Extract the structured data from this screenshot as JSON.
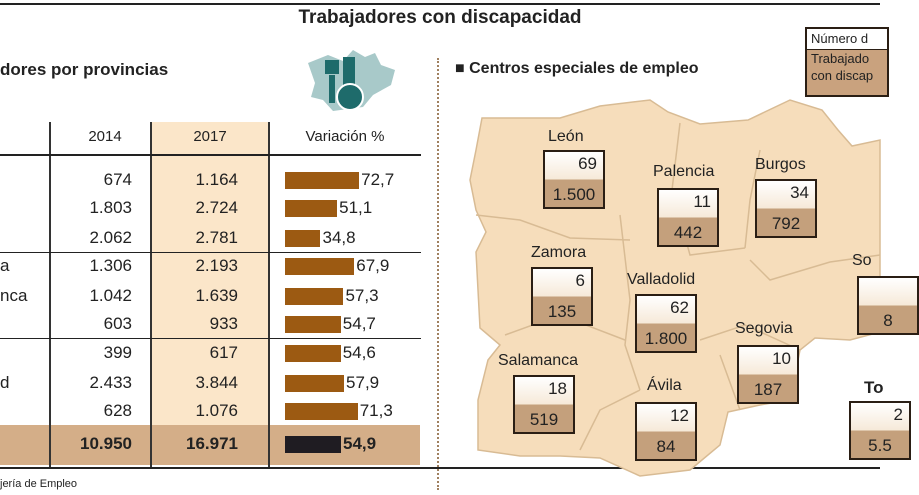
{
  "title": "Trabajadores con discapacidad",
  "left": {
    "subtitle": "dores por provincias",
    "headers": [
      "2014",
      "2017",
      "Variación %"
    ],
    "row_labels": [
      "a",
      "nca",
      "d"
    ],
    "rows": [
      {
        "y2014": "674",
        "y2017": "1.164",
        "var": "72,7",
        "var_value": 72.7
      },
      {
        "y2014": "1.803",
        "y2017": "2.724",
        "var": "51,1",
        "var_value": 51.1
      },
      {
        "y2014": "2.062",
        "y2017": "2.781",
        "var": "34,8",
        "var_value": 34.8
      },
      {
        "y2014": "1.306",
        "y2017": "2.193",
        "var": "67,9",
        "var_value": 67.9
      },
      {
        "y2014": "1.042",
        "y2017": "1.639",
        "var": "57,3",
        "var_value": 57.3
      },
      {
        "y2014": "603",
        "y2017": "933",
        "var": "54,7",
        "var_value": 54.7
      },
      {
        "y2014": "399",
        "y2017": "617",
        "var": "54,6",
        "var_value": 54.6
      },
      {
        "y2014": "2.433",
        "y2017": "3.844",
        "var": "57,9",
        "var_value": 57.9
      },
      {
        "y2014": "628",
        "y2017": "1.076",
        "var": "71,3",
        "var_value": 71.3
      }
    ],
    "total": {
      "y2014": "10.950",
      "y2017": "16.971",
      "var": "54,9",
      "var_value": 54.9
    },
    "source": "jería de Empleo",
    "colors": {
      "bar": "#9c5a12",
      "total_bar": "#1f1c22",
      "col2017": "#fbe6c9",
      "total_row": "#d4ae88"
    }
  },
  "right": {
    "subtitle": "Centros especiales de empleo",
    "legend": {
      "top": "Número d",
      "bottom1": "Trabajado",
      "bottom2": "con discap"
    },
    "provinces": [
      {
        "name": "León",
        "centros": "69",
        "trabajadores": "1.500"
      },
      {
        "name": "Palencia",
        "centros": "11",
        "trabajadores": "442"
      },
      {
        "name": "Burgos",
        "centros": "34",
        "trabajadores": "792"
      },
      {
        "name": "Zamora",
        "centros": "6",
        "trabajadores": "135"
      },
      {
        "name": "Valladolid",
        "centros": "62",
        "trabajadores": "1.800"
      },
      {
        "name": "Segovia",
        "centros": "10",
        "trabajadores": "187"
      },
      {
        "name": "Salamanca",
        "centros": "18",
        "trabajadores": "519"
      },
      {
        "name": "Ávila",
        "centros": "12",
        "trabajadores": "84"
      },
      {
        "name": "So",
        "centros": "",
        "trabajadores": "8"
      },
      {
        "name": "To",
        "centros": "2",
        "trabajadores": "5.5"
      }
    ],
    "colors": {
      "map_fill": "#f6ddbb",
      "map_border": "#d8bb94",
      "box_bottom": "#c4a07c"
    }
  }
}
